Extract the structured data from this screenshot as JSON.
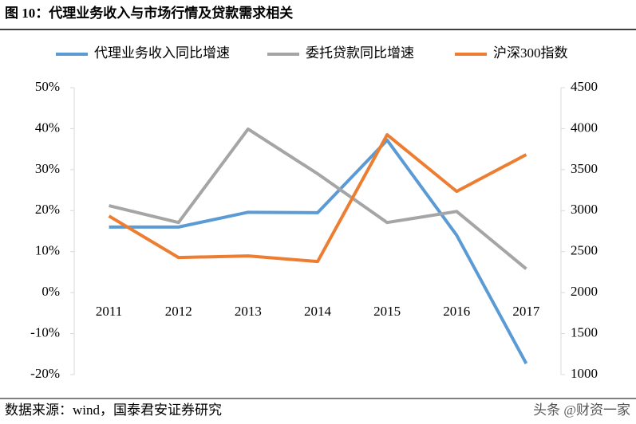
{
  "chart_data": {
    "type": "line",
    "title": "图 10：代理业务收入与市场行情及贷款需求相关",
    "source": "数据来源：wind，国泰君安证券研究",
    "watermark": "头条 @财资一家",
    "categories": [
      "2011",
      "2012",
      "2013",
      "2014",
      "2015",
      "2016",
      "2017"
    ],
    "series": [
      {
        "name": "代理业务收入同比增速",
        "color": "#5b9bd5",
        "values": [
          16,
          16,
          19.6,
          19.5,
          37.2,
          14,
          -17.3
        ]
      },
      {
        "name": "委托贷款同比增速",
        "color": "#a5a5a5",
        "values": [
          21.2,
          17.1,
          39.9,
          29,
          17.1,
          19.8,
          5.8
        ]
      },
      {
        "name": "沪深300指数",
        "color": "#ed7d31",
        "axis": "y2",
        "values": [
          2934,
          2428,
          2447,
          2379,
          3926,
          3235,
          3683
        ]
      }
    ],
    "ylim": [
      -20,
      50
    ],
    "yticks": [
      {
        "value": -20,
        "label": "-20%"
      },
      {
        "value": -10,
        "label": "-10%"
      },
      {
        "value": 0,
        "label": "0%"
      },
      {
        "value": 10,
        "label": "10%"
      },
      {
        "value": 20,
        "label": "20%"
      },
      {
        "value": 30,
        "label": "30%"
      },
      {
        "value": 40,
        "label": "40%"
      },
      {
        "value": 50,
        "label": "50%"
      }
    ],
    "y2lim": [
      1000,
      4500
    ],
    "y2ticks": [
      1000,
      1500,
      2000,
      2500,
      3000,
      3500,
      4000,
      4500
    ],
    "grid": false
  }
}
